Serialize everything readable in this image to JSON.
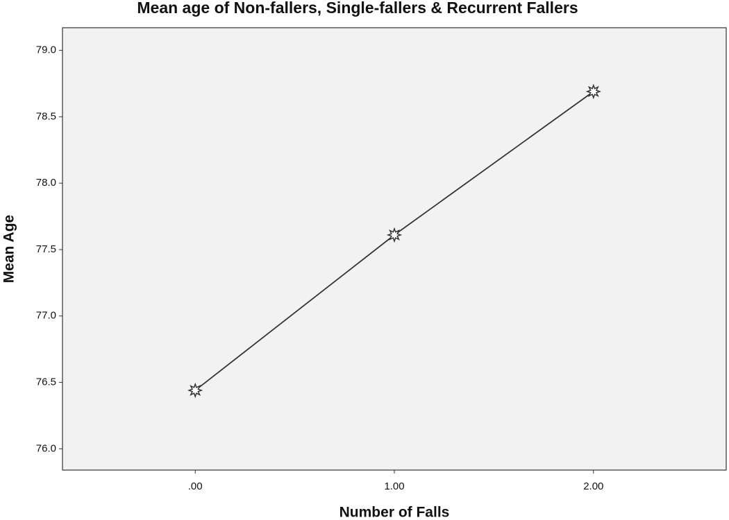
{
  "chart_data": {
    "type": "line",
    "title": "Mean age of Non-fallers, Single-fallers & Recurrent Fallers",
    "x_label": "Number of Falls",
    "y_label": "Mean Age",
    "categories": [
      ".00",
      "1.00",
      "2.00"
    ],
    "values": [
      76.44,
      77.61,
      78.69
    ],
    "color": "#333333",
    "marker_color": "#ffffff",
    "ylim": [
      75.84,
      79.17
    ],
    "yticks": [
      {
        "value": 76,
        "label": "76.0"
      },
      76.5,
      {
        "value": 77,
        "label": "77.0"
      },
      77.5,
      {
        "value": 78,
        "label": "78.0"
      },
      78.5,
      {
        "value": 79,
        "label": "79.0"
      }
    ],
    "grid": false
  }
}
